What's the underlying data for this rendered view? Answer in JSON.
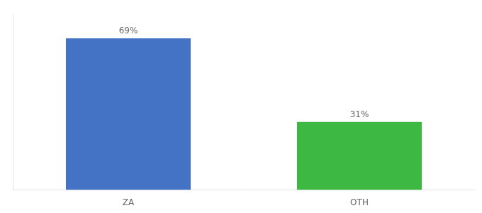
{
  "chart_data": {
    "type": "bar",
    "categories": [
      "ZA",
      "OTH"
    ],
    "values": [
      69,
      31
    ],
    "colors": [
      "#4472c4",
      "#3cb843"
    ],
    "ylim": [
      0,
      80
    ],
    "data_labels": true,
    "value_labels": [
      "69%",
      "31%"
    ],
    "tick_labels": "x",
    "grid": false
  }
}
